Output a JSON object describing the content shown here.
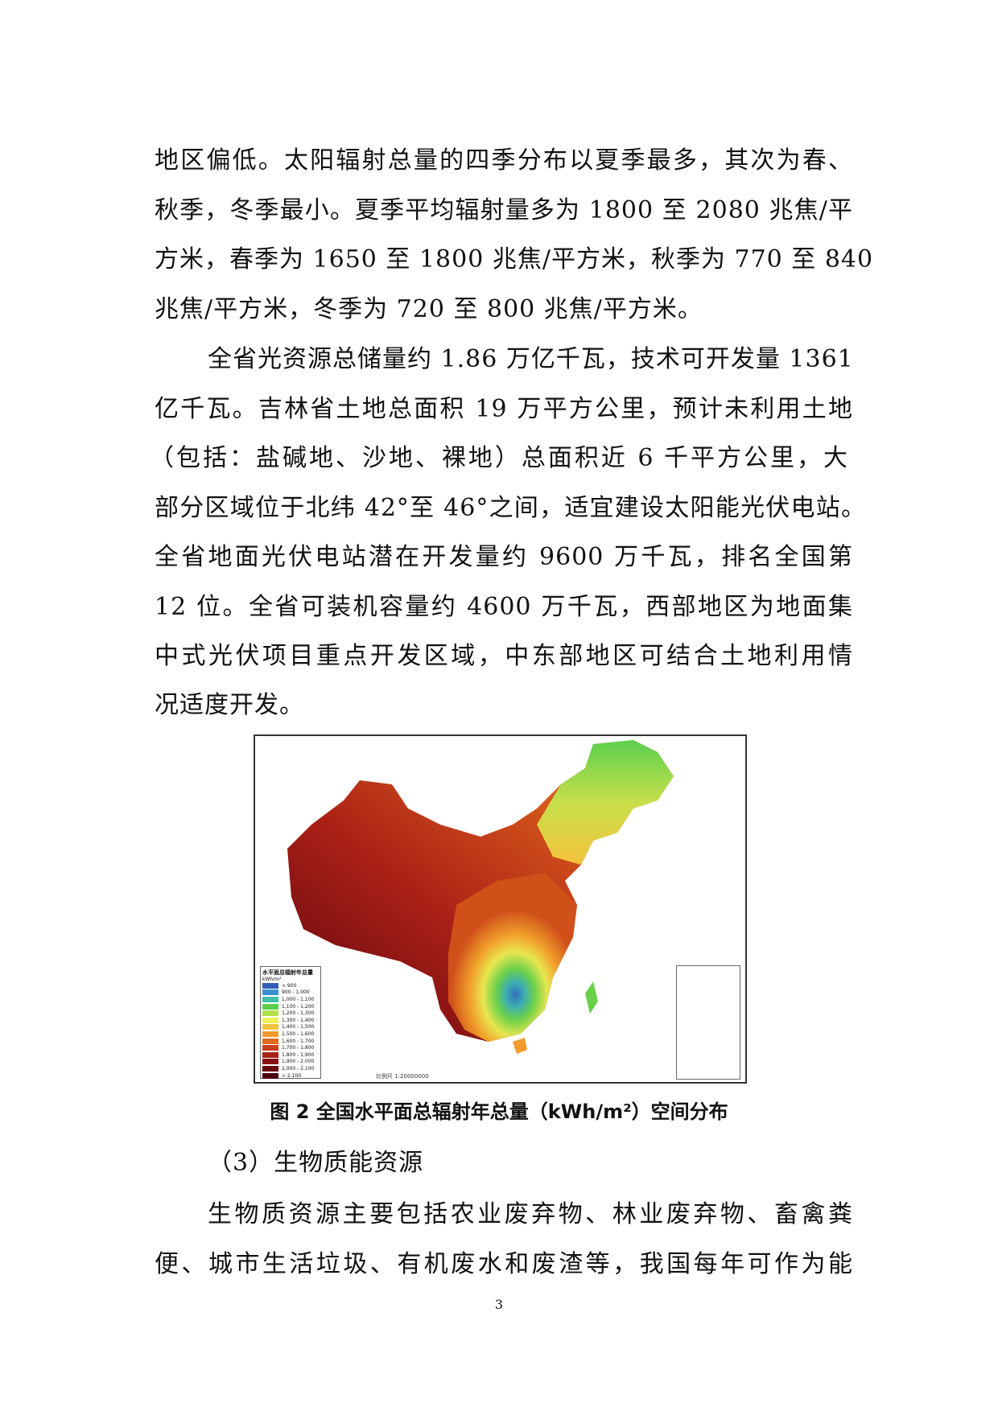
{
  "paragraphs": {
    "p1_lines": [
      "地区偏低。太阳辐射总量的四季分布以夏季最多，其次为春、",
      "秋季，冬季最小。夏季平均辐射量多为 1800 至 2080 兆焦/平",
      "方米，春季为 1650 至 1800 兆焦/平方米，秋季为 770 至 840",
      "兆焦/平方米，冬季为 720 至 800 兆焦/平方米。"
    ],
    "p2_lines": [
      "全省光资源总储量约 1.86 万亿千瓦，技术可开发量 1361",
      "亿千瓦。吉林省土地总面积 19 万平方公里，预计未利用土地",
      "（包括：盐碱地、沙地、裸地）总面积近 6 千平方公里，大",
      "部分区域位于北纬 42°至 46°之间，适宜建设太阳能光伏电站。",
      "全省地面光伏电站潜在开发量约 9600 万千瓦，排名全国第",
      "12 位。全省可装机容量约 4600 万千瓦，西部地区为地面集",
      "中式光伏项目重点开发区域，中东部地区可结合土地利用情",
      "况适度开发。"
    ],
    "heading": "（3）生物质能资源",
    "p3_lines": [
      "生物质资源主要包括农业废弃物、林业废弃物、畜禽粪",
      "便、城市生活垃圾、有机废水和废渣等，我国每年可作为能"
    ]
  },
  "figure": {
    "legend_title": "水平面总辐射年总量",
    "legend_unit": "kWh/m²",
    "legend_items": [
      {
        "label": "< 900",
        "color": "#2f5fb8"
      },
      {
        "label": "900 - 1,000",
        "color": "#3a8fd0"
      },
      {
        "label": "1,000 - 1,100",
        "color": "#3fbfa8"
      },
      {
        "label": "1,100 - 1,200",
        "color": "#5ccf4e"
      },
      {
        "label": "1,200 - 1,300",
        "color": "#b4e04a"
      },
      {
        "label": "1,300 - 1,400",
        "color": "#f2ee55"
      },
      {
        "label": "1,400 - 1,500",
        "color": "#f4c23c"
      },
      {
        "label": "1,500 - 1,600",
        "color": "#f29a2a"
      },
      {
        "label": "1,600 - 1,700",
        "color": "#e06a1c"
      },
      {
        "label": "1,700 - 1,800",
        "color": "#c8401a"
      },
      {
        "label": "1,800 - 1,900",
        "color": "#a82016"
      },
      {
        "label": "1,900 - 2,000",
        "color": "#8a0d12"
      },
      {
        "label": "2,000 - 2,100",
        "color": "#6a0610"
      },
      {
        "label": "> 2,100",
        "color": "#4a020c"
      }
    ],
    "scale": "比例尺 1:20000000",
    "caption": "图 2 全国水平面总辐射年总量（kWh/m²）空间分布"
  },
  "page_number": "3"
}
